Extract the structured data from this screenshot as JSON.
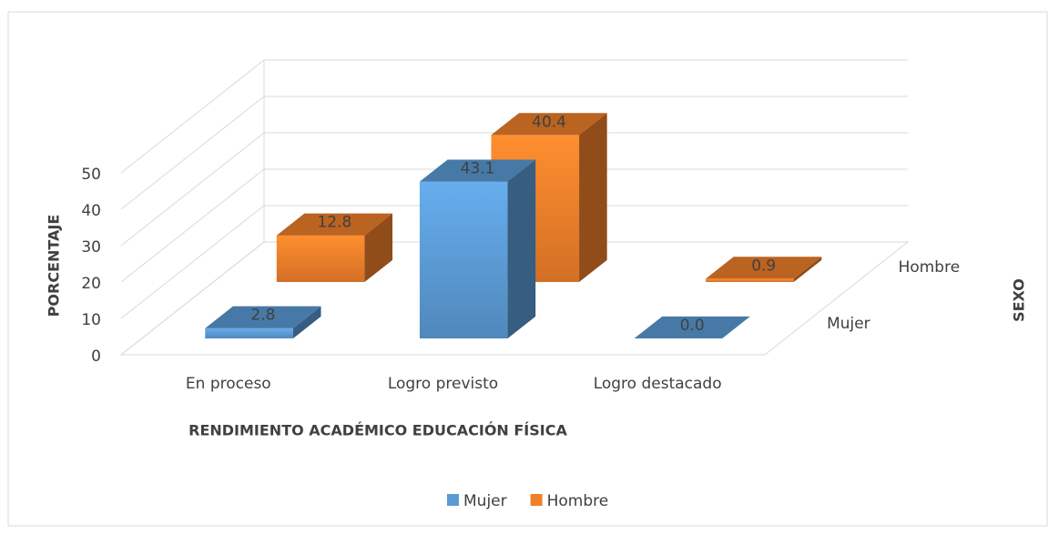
{
  "chart_data": {
    "type": "bar",
    "x_label": "RENDIMIENTO ACADÉMICO EDUCACIÓN FÍSICA",
    "y_label": "PORCENTAJE",
    "z_label": "SEXO",
    "categories": [
      "En proceso",
      "Logro previsto",
      "Logro destacado"
    ],
    "series": [
      {
        "name": "Mujer",
        "color": "#5b9bd5",
        "values": [
          2.8,
          43.1,
          0.0
        ],
        "value_labels": [
          "2.8",
          "43.1",
          "0.0"
        ]
      },
      {
        "name": "Hombre",
        "color": "#f07f2a",
        "values": [
          12.8,
          40.4,
          0.9
        ],
        "value_labels": [
          "12.8",
          "40.4",
          "0.9"
        ]
      }
    ],
    "ylim": [
      0,
      50
    ],
    "yticks": [
      0,
      10,
      20,
      30,
      40,
      50
    ],
    "grid": true,
    "legend": "bottom"
  }
}
